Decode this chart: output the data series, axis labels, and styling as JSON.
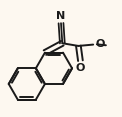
{
  "bg_color": "#fdf8f0",
  "bond_color": "#1a1a1a",
  "bond_width": 1.4,
  "dbo": 0.018,
  "figsize": [
    1.22,
    1.17
  ],
  "dpi": 100,
  "text_color": "#1a1a1a",
  "font_size": 8.0,
  "N_label": "N",
  "O_label": "O"
}
